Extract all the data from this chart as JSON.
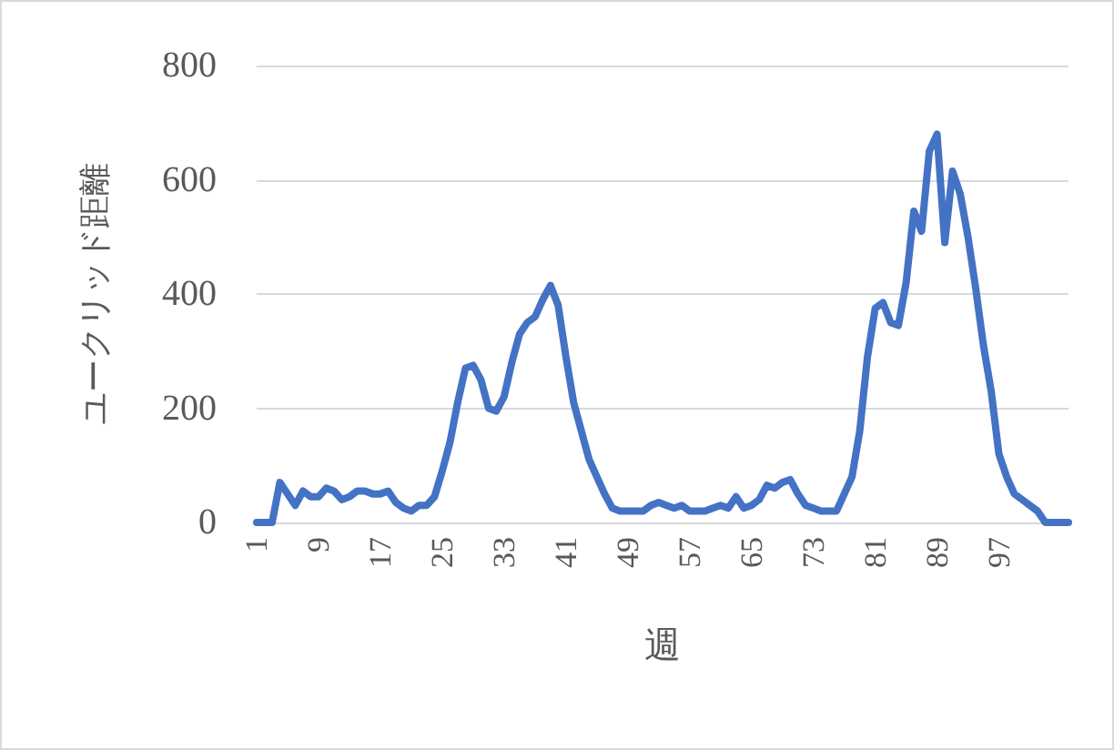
{
  "chart_data": {
    "type": "line",
    "xlabel": "週",
    "ylabel": "ユークリッド距離",
    "categories": [
      "1",
      null,
      null,
      null,
      null,
      null,
      null,
      null,
      "9",
      null,
      null,
      null,
      null,
      null,
      null,
      null,
      "17",
      null,
      null,
      null,
      null,
      null,
      null,
      null,
      "25",
      null,
      null,
      null,
      null,
      null,
      null,
      null,
      "33",
      null,
      null,
      null,
      null,
      null,
      null,
      null,
      "41",
      null,
      null,
      null,
      null,
      null,
      null,
      null,
      "49",
      null,
      null,
      null,
      null,
      null,
      null,
      null,
      "57",
      null,
      null,
      null,
      null,
      null,
      null,
      null,
      "65",
      null,
      null,
      null,
      null,
      null,
      null,
      null,
      "73",
      null,
      null,
      null,
      null,
      null,
      null,
      null,
      "81",
      null,
      null,
      null,
      null,
      null,
      null,
      null,
      "89",
      null,
      null,
      null,
      null,
      null,
      null,
      null,
      "97",
      null,
      null,
      null,
      null,
      null,
      null,
      null,
      null,
      null
    ],
    "series": [
      {
        "color": "#4472c4",
        "values": [
          0,
          0,
          0,
          70,
          50,
          30,
          55,
          45,
          45,
          60,
          55,
          40,
          45,
          55,
          55,
          50,
          50,
          55,
          35,
          25,
          20,
          30,
          30,
          45,
          90,
          140,
          210,
          270,
          275,
          250,
          200,
          195,
          220,
          280,
          330,
          350,
          360,
          390,
          415,
          380,
          290,
          210,
          160,
          110,
          80,
          50,
          25,
          20,
          20,
          20,
          20,
          30,
          35,
          30,
          25,
          30,
          20,
          20,
          20,
          25,
          30,
          25,
          45,
          25,
          30,
          40,
          65,
          60,
          70,
          75,
          50,
          30,
          25,
          20,
          20,
          20,
          50,
          80,
          160,
          290,
          375,
          385,
          350,
          345,
          420,
          545,
          510,
          650,
          680,
          490,
          615,
          575,
          500,
          410,
          310,
          230,
          120,
          80,
          50,
          40,
          30,
          20,
          0,
          0,
          0,
          0
        ]
      }
    ],
    "ylim": [
      0,
      800
    ],
    "yticks": [
      0,
      200,
      400,
      600,
      800
    ],
    "grid": "y",
    "marker": "none",
    "line_style": "solid"
  }
}
